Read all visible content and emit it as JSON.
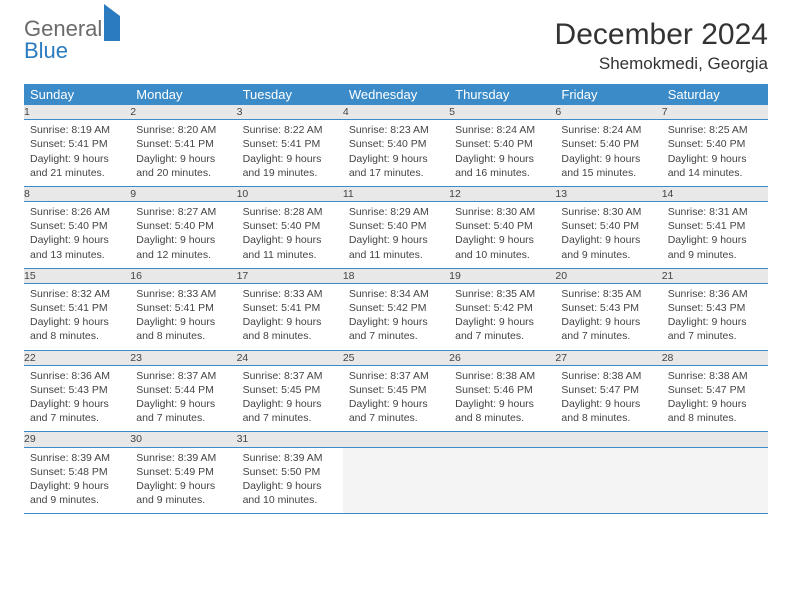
{
  "logo": {
    "word1": "General",
    "word2": "Blue"
  },
  "title": "December 2024",
  "location": "Shemokmedi, Georgia",
  "colors": {
    "header_bg": "#3b8bc9",
    "header_text": "#ffffff",
    "daynum_bg": "#e8e8e8",
    "border": "#3b8bc9",
    "logo_gray": "#6b6b6b",
    "logo_blue": "#2a7bbf"
  },
  "weekdays": [
    "Sunday",
    "Monday",
    "Tuesday",
    "Wednesday",
    "Thursday",
    "Friday",
    "Saturday"
  ],
  "weeks": [
    [
      {
        "n": "1",
        "sr": "8:19 AM",
        "ss": "5:41 PM",
        "dl": "9 hours and 21 minutes."
      },
      {
        "n": "2",
        "sr": "8:20 AM",
        "ss": "5:41 PM",
        "dl": "9 hours and 20 minutes."
      },
      {
        "n": "3",
        "sr": "8:22 AM",
        "ss": "5:41 PM",
        "dl": "9 hours and 19 minutes."
      },
      {
        "n": "4",
        "sr": "8:23 AM",
        "ss": "5:40 PM",
        "dl": "9 hours and 17 minutes."
      },
      {
        "n": "5",
        "sr": "8:24 AM",
        "ss": "5:40 PM",
        "dl": "9 hours and 16 minutes."
      },
      {
        "n": "6",
        "sr": "8:24 AM",
        "ss": "5:40 PM",
        "dl": "9 hours and 15 minutes."
      },
      {
        "n": "7",
        "sr": "8:25 AM",
        "ss": "5:40 PM",
        "dl": "9 hours and 14 minutes."
      }
    ],
    [
      {
        "n": "8",
        "sr": "8:26 AM",
        "ss": "5:40 PM",
        "dl": "9 hours and 13 minutes."
      },
      {
        "n": "9",
        "sr": "8:27 AM",
        "ss": "5:40 PM",
        "dl": "9 hours and 12 minutes."
      },
      {
        "n": "10",
        "sr": "8:28 AM",
        "ss": "5:40 PM",
        "dl": "9 hours and 11 minutes."
      },
      {
        "n": "11",
        "sr": "8:29 AM",
        "ss": "5:40 PM",
        "dl": "9 hours and 11 minutes."
      },
      {
        "n": "12",
        "sr": "8:30 AM",
        "ss": "5:40 PM",
        "dl": "9 hours and 10 minutes."
      },
      {
        "n": "13",
        "sr": "8:30 AM",
        "ss": "5:40 PM",
        "dl": "9 hours and 9 minutes."
      },
      {
        "n": "14",
        "sr": "8:31 AM",
        "ss": "5:41 PM",
        "dl": "9 hours and 9 minutes."
      }
    ],
    [
      {
        "n": "15",
        "sr": "8:32 AM",
        "ss": "5:41 PM",
        "dl": "9 hours and 8 minutes."
      },
      {
        "n": "16",
        "sr": "8:33 AM",
        "ss": "5:41 PM",
        "dl": "9 hours and 8 minutes."
      },
      {
        "n": "17",
        "sr": "8:33 AM",
        "ss": "5:41 PM",
        "dl": "9 hours and 8 minutes."
      },
      {
        "n": "18",
        "sr": "8:34 AM",
        "ss": "5:42 PM",
        "dl": "9 hours and 7 minutes."
      },
      {
        "n": "19",
        "sr": "8:35 AM",
        "ss": "5:42 PM",
        "dl": "9 hours and 7 minutes."
      },
      {
        "n": "20",
        "sr": "8:35 AM",
        "ss": "5:43 PM",
        "dl": "9 hours and 7 minutes."
      },
      {
        "n": "21",
        "sr": "8:36 AM",
        "ss": "5:43 PM",
        "dl": "9 hours and 7 minutes."
      }
    ],
    [
      {
        "n": "22",
        "sr": "8:36 AM",
        "ss": "5:43 PM",
        "dl": "9 hours and 7 minutes."
      },
      {
        "n": "23",
        "sr": "8:37 AM",
        "ss": "5:44 PM",
        "dl": "9 hours and 7 minutes."
      },
      {
        "n": "24",
        "sr": "8:37 AM",
        "ss": "5:45 PM",
        "dl": "9 hours and 7 minutes."
      },
      {
        "n": "25",
        "sr": "8:37 AM",
        "ss": "5:45 PM",
        "dl": "9 hours and 7 minutes."
      },
      {
        "n": "26",
        "sr": "8:38 AM",
        "ss": "5:46 PM",
        "dl": "9 hours and 8 minutes."
      },
      {
        "n": "27",
        "sr": "8:38 AM",
        "ss": "5:47 PM",
        "dl": "9 hours and 8 minutes."
      },
      {
        "n": "28",
        "sr": "8:38 AM",
        "ss": "5:47 PM",
        "dl": "9 hours and 8 minutes."
      }
    ],
    [
      {
        "n": "29",
        "sr": "8:39 AM",
        "ss": "5:48 PM",
        "dl": "9 hours and 9 minutes."
      },
      {
        "n": "30",
        "sr": "8:39 AM",
        "ss": "5:49 PM",
        "dl": "9 hours and 9 minutes."
      },
      {
        "n": "31",
        "sr": "8:39 AM",
        "ss": "5:50 PM",
        "dl": "9 hours and 10 minutes."
      },
      null,
      null,
      null,
      null
    ]
  ],
  "labels": {
    "sunrise": "Sunrise:",
    "sunset": "Sunset:",
    "daylight": "Daylight:"
  }
}
